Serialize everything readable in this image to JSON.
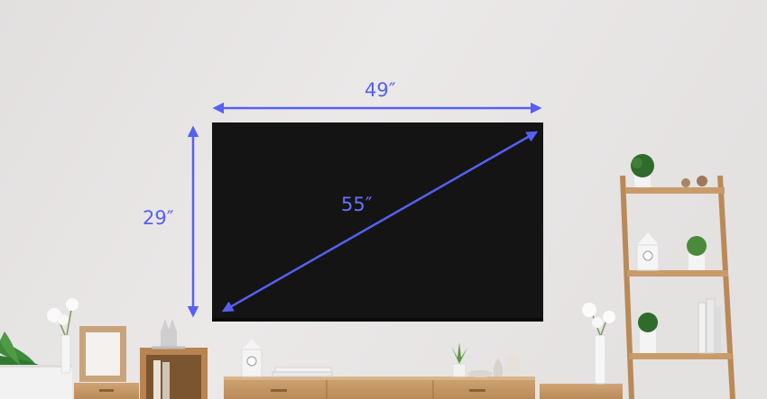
{
  "measurements": {
    "width": "49″",
    "height": "29″",
    "diagonal": "55″"
  },
  "colors": {
    "wall": "#e7e4e4",
    "tv_screen": "#141414",
    "arrow": "#5660f2"
  }
}
